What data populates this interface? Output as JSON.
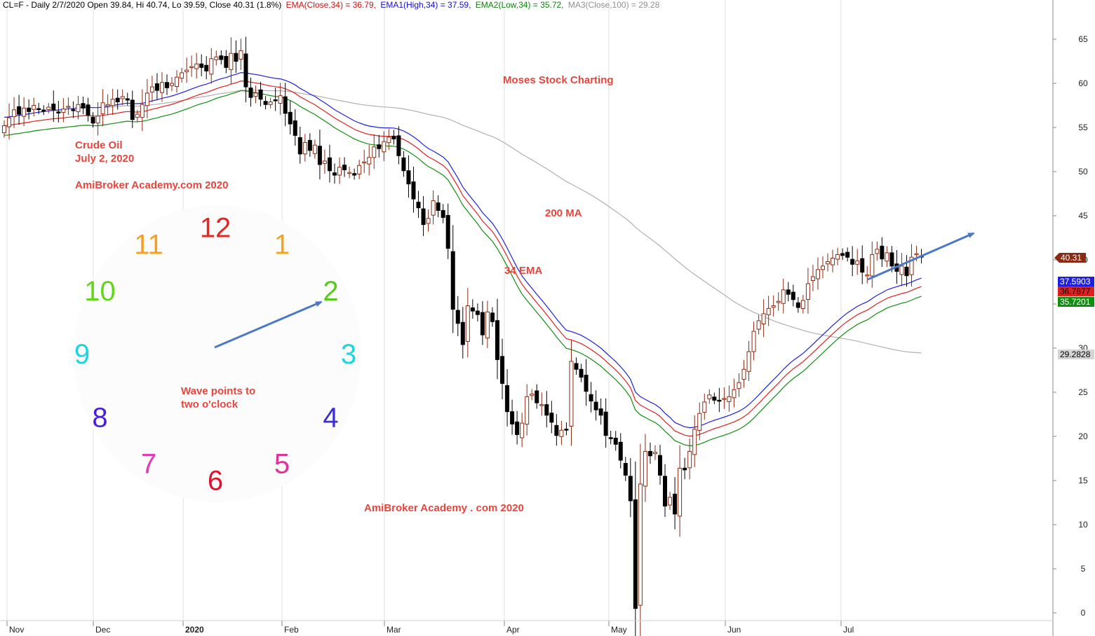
{
  "header": {
    "symbol_info": "CL=F - Daily 2/7/2020 Open 39.84, Hi 40.74, Lo 39.59, Close 40.31 (1.8%)",
    "ema_close": "EMA(Close,34) = 36.79,",
    "ema_high": "EMA1(High,34) = 37.59,",
    "ema_low": "EMA2(Low,34) = 35.72,",
    "ma_close": "MA3(Close,100) = 29.28"
  },
  "annotations": {
    "moses": "Moses Stock Charting",
    "crude": "Crude Oil",
    "date": "July 2, 2020",
    "academy_top": "AmiBroker Academy.com  2020",
    "ma200": "200 MA",
    "ema34": "34 EMA",
    "wave_line1": "Wave points to",
    "wave_line2": "two o'clock",
    "academy_bottom": "AmiBroker Academy . com  2020"
  },
  "clock": {
    "numbers": [
      "12",
      "1",
      "2",
      "3",
      "4",
      "5",
      "6",
      "7",
      "8",
      "9",
      "10",
      "11"
    ],
    "colors": [
      "#e8251f",
      "#f5a31a",
      "#55cc1a",
      "#1ad6e0",
      "#3a2fd6",
      "#e0329b",
      "#e0122f",
      "#e03cb4",
      "#4b1fd6",
      "#1ad6e0",
      "#62d61a",
      "#f5a020"
    ]
  },
  "value_tags": {
    "close": "40.31",
    "ema_high": "37.5903",
    "ema_close": "36.7877",
    "ema_low": "35.7201",
    "ma": "29.2828"
  },
  "colors": {
    "ema_high": "#1f1fe0",
    "ema_close": "#e01f1f",
    "ema_low": "#0f8f0f",
    "ma": "#b0b0b0",
    "up_candle": "#8b2a12",
    "down_candle": "#000000",
    "annotation": "#e8453c",
    "arrow": "#4b78c8"
  },
  "chart_data": {
    "type": "candlestick",
    "y_axis": {
      "min": 0,
      "max": 65,
      "ticks": [
        0,
        5,
        10,
        15,
        20,
        25,
        30,
        35,
        40,
        45,
        50,
        55,
        60,
        65
      ],
      "position": "right"
    },
    "x_axis": {
      "months": [
        "Nov",
        "Dec",
        "2020",
        "Feb",
        "Mar",
        "Apr",
        "May",
        "Jun",
        "Jul"
      ]
    },
    "grid": "vertical month lines",
    "last_close": 40.31,
    "series": [
      {
        "name": "EMA(Close,34)",
        "last": 36.79
      },
      {
        "name": "EMA1(High,34)",
        "last": 37.59
      },
      {
        "name": "EMA2(Low,34)",
        "last": 35.72
      },
      {
        "name": "MA3(Close,100)",
        "last": 29.28
      }
    ],
    "closes": [
      55.2,
      56.1,
      57.0,
      56.5,
      57.2,
      56.8,
      57.5,
      57.1,
      56.9,
      57.3,
      57.0,
      56.7,
      57.1,
      57.4,
      56.9,
      57.6,
      57.2,
      56.4,
      55.5,
      56.3,
      57.8,
      57.6,
      58.2,
      57.9,
      58.5,
      58.1,
      55.9,
      56.5,
      57.6,
      58.9,
      59.6,
      59.2,
      60.1,
      59.5,
      60.0,
      60.7,
      61.2,
      61.5,
      61.9,
      62.2,
      61.8,
      61.4,
      62.8,
      63.0,
      62.7,
      61.8,
      63.4,
      62.5,
      63.7,
      59.6,
      58.4,
      58.9,
      58.2,
      57.6,
      57.9,
      58.1,
      58.6,
      56.6,
      55.4,
      54.1,
      52.0,
      53.3,
      52.4,
      53.0,
      50.8,
      51.2,
      50.1,
      49.6,
      50.5,
      50.2,
      49.9,
      49.6,
      50.7,
      51.1,
      51.6,
      52.8,
      52.6,
      53.4,
      53.9,
      53.7,
      51.8,
      50.1,
      48.6,
      46.9,
      45.9,
      44.0,
      44.7,
      46.7,
      45.6,
      44.8,
      41.3,
      34.4,
      32.8,
      30.4,
      34.8,
      34.2,
      33.8,
      31.5,
      34.1,
      33.0,
      28.7,
      26.0,
      22.8,
      21.4,
      20.2,
      21.5,
      24.5,
      24.8,
      23.8,
      23.6,
      22.4,
      21.6,
      20.1,
      20.7,
      20.8,
      28.5,
      27.6,
      26.7,
      25.1,
      24.0,
      23.0,
      22.4,
      20.1,
      19.8,
      19.1,
      17.3,
      15.6,
      12.7,
      0.5,
      14.6,
      18.3,
      17.8,
      18.2,
      15.6,
      12.1,
      13.1,
      11.2,
      16.4,
      16.2,
      18.3,
      20.8,
      22.6,
      23.9,
      24.7,
      24.1,
      24.0,
      24.3,
      24.5,
      25.3,
      26.1,
      27.6,
      29.6,
      31.9,
      33.1,
      33.9,
      34.5,
      34.8,
      35.3,
      36.6,
      36.1,
      35.5,
      34.6,
      35.4,
      37.3,
      38.1,
      38.9,
      39.3,
      39.8,
      40.2,
      40.6,
      40.5,
      40.3,
      39.5,
      39.9,
      38.6,
      38.3,
      40.6,
      41.2,
      40.1,
      40.8,
      39.3,
      38.7,
      39.3,
      38.2,
      40.3,
      40.7,
      40.31
    ]
  }
}
